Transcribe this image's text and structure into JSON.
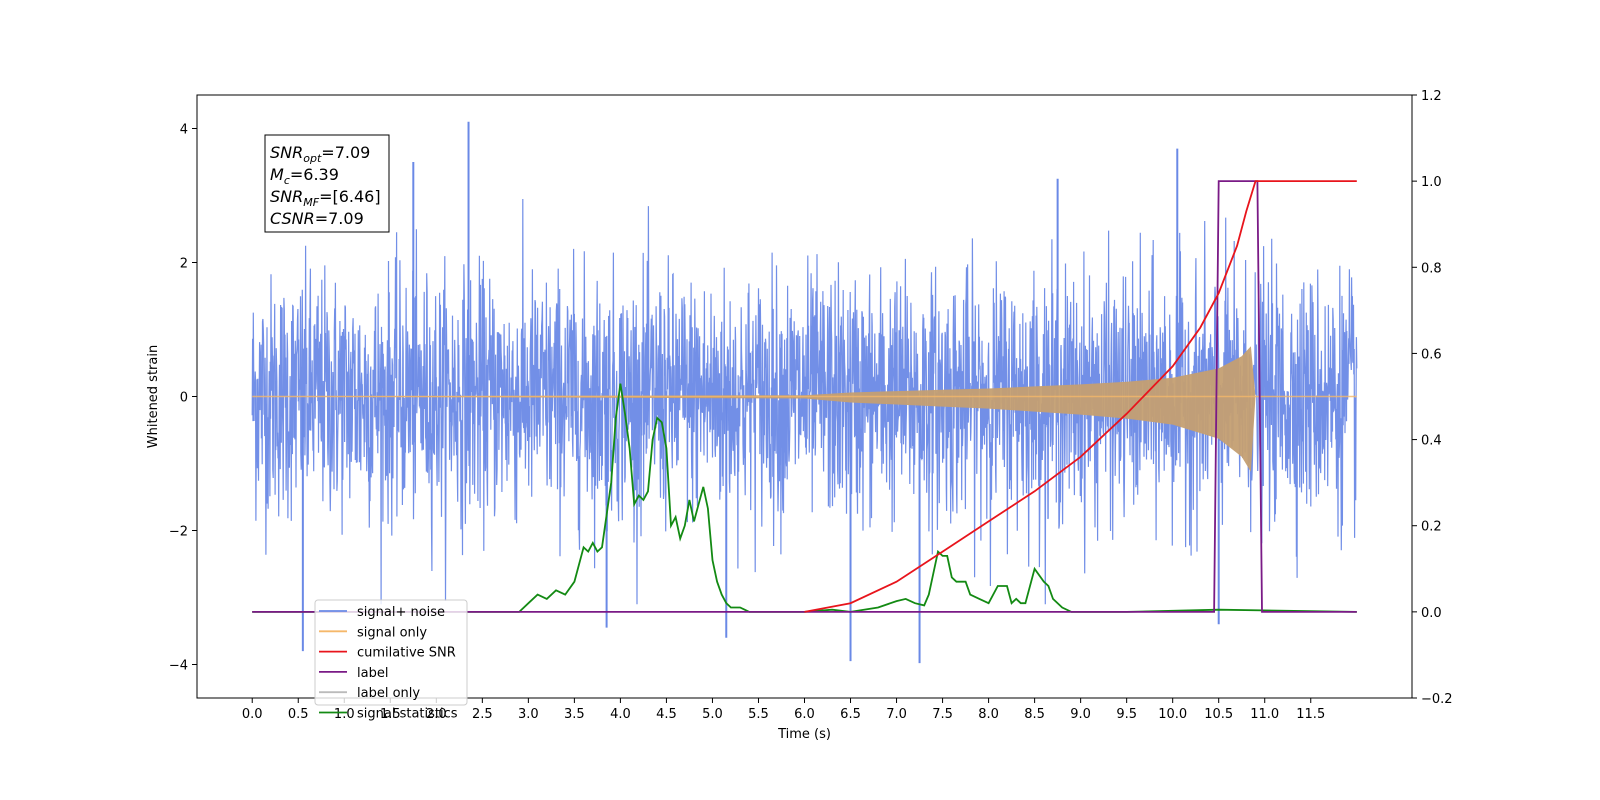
{
  "chart_data": {
    "type": "line",
    "title": "",
    "xlabel": "Time (s)",
    "ylabel": "Whitened strain",
    "y2label": "",
    "xlim": [
      -0.6,
      12.6
    ],
    "ylim": [
      -4.5,
      4.5
    ],
    "y2lim": [
      -0.2,
      1.2
    ],
    "x_ticks": [
      0.0,
      0.5,
      1.0,
      1.5,
      2.0,
      2.5,
      3.0,
      3.5,
      4.0,
      4.5,
      5.0,
      5.5,
      6.0,
      6.5,
      7.0,
      7.5,
      8.0,
      8.5,
      9.0,
      9.5,
      10.0,
      10.5,
      11.0,
      11.5
    ],
    "x_tick_labels": [
      "0.0",
      "0.5",
      "1.0",
      "1.5",
      "2.0",
      "2.5",
      "3.0",
      "3.5",
      "4.0",
      "4.5",
      "5.0",
      "5.5",
      "6.0",
      "6.5",
      "7.0",
      "7.5",
      "8.0",
      "8.5",
      "9.0",
      "9.5",
      "10.0",
      "10.5",
      "11.0",
      "11.5"
    ],
    "y_ticks": [
      -4,
      -2,
      0,
      2,
      4
    ],
    "y_tick_labels": [
      "−4",
      "−2",
      "0",
      "2",
      "4"
    ],
    "y2_ticks": [
      -0.2,
      0.0,
      0.2,
      0.4,
      0.6,
      0.8,
      1.0,
      1.2
    ],
    "y2_tick_labels": [
      "−0.2",
      "0.0",
      "0.2",
      "0.4",
      "0.6",
      "0.8",
      "1.0",
      "1.2"
    ],
    "grid": false,
    "legend_position": "lower-left",
    "series": [
      {
        "name": "signal+ noise",
        "axis": "left",
        "color": "#6a89e6",
        "noise_std": 0.9,
        "x_range": [
          0.0,
          12.0
        ],
        "spikes": [
          [
            0.55,
            -3.8
          ],
          [
            1.75,
            3.5
          ],
          [
            2.35,
            4.1
          ],
          [
            3.85,
            -3.45
          ],
          [
            5.15,
            -3.6
          ],
          [
            6.5,
            -3.95
          ],
          [
            7.25,
            -3.98
          ],
          [
            8.75,
            3.25
          ],
          [
            10.05,
            3.7
          ],
          [
            10.5,
            -3.4
          ]
        ]
      },
      {
        "name": "signal only",
        "axis": "left",
        "color": "#f5b86a",
        "envelope": [
          [
            0.0,
            0.0
          ],
          [
            6.0,
            0.02
          ],
          [
            6.5,
            0.06
          ],
          [
            7.0,
            0.08
          ],
          [
            7.5,
            0.1
          ],
          [
            8.0,
            0.12
          ],
          [
            8.5,
            0.15
          ],
          [
            9.0,
            0.18
          ],
          [
            9.5,
            0.22
          ],
          [
            10.0,
            0.28
          ],
          [
            10.5,
            0.42
          ],
          [
            10.75,
            0.6
          ],
          [
            10.85,
            0.75
          ],
          [
            10.9,
            0.0
          ],
          [
            12.0,
            0.0
          ]
        ]
      },
      {
        "name": "cumilative SNR",
        "axis": "right",
        "color": "#e8141c",
        "x": [
          6.0,
          6.5,
          7.0,
          7.5,
          8.0,
          8.5,
          9.0,
          9.5,
          10.0,
          10.3,
          10.5,
          10.7,
          10.8,
          10.9,
          12.0
        ],
        "values": [
          0.0,
          0.02,
          0.07,
          0.14,
          0.21,
          0.28,
          0.36,
          0.46,
          0.57,
          0.66,
          0.74,
          0.85,
          0.93,
          1.0,
          1.0
        ]
      },
      {
        "name": "label",
        "axis": "right",
        "color": "#7a1a86",
        "x": [
          0.0,
          10.45,
          10.5,
          10.92,
          10.97,
          12.0
        ],
        "values": [
          0.0,
          0.0,
          1.0,
          1.0,
          0.0,
          0.0
        ]
      },
      {
        "name": "label only",
        "axis": "right",
        "color": "#bbbbbb",
        "x": [],
        "values": []
      },
      {
        "name": "signal statistics",
        "axis": "right",
        "color": "#138a13",
        "x": [
          0.0,
          2.9,
          3.0,
          3.1,
          3.2,
          3.3,
          3.4,
          3.5,
          3.6,
          3.65,
          3.7,
          3.75,
          3.8,
          3.9,
          3.95,
          4.0,
          4.05,
          4.1,
          4.15,
          4.2,
          4.25,
          4.3,
          4.35,
          4.4,
          4.45,
          4.5,
          4.55,
          4.6,
          4.65,
          4.7,
          4.75,
          4.8,
          4.85,
          4.9,
          4.95,
          5.0,
          5.05,
          5.1,
          5.15,
          5.2,
          5.25,
          5.3,
          5.35,
          5.4,
          5.45,
          5.5,
          5.6,
          5.7,
          5.8,
          6.0,
          6.3,
          6.5,
          6.8,
          7.0,
          7.1,
          7.2,
          7.3,
          7.35,
          7.45,
          7.5,
          7.55,
          7.6,
          7.65,
          7.7,
          7.75,
          7.8,
          7.9,
          8.0,
          8.1,
          8.2,
          8.25,
          8.3,
          8.35,
          8.4,
          8.5,
          8.6,
          8.65,
          8.7,
          8.8,
          8.9,
          9.0,
          9.2,
          9.5,
          10.5,
          12.0
        ],
        "values": [
          0.0,
          0.0,
          0.02,
          0.04,
          0.03,
          0.05,
          0.04,
          0.07,
          0.15,
          0.14,
          0.16,
          0.14,
          0.15,
          0.3,
          0.45,
          0.53,
          0.46,
          0.38,
          0.25,
          0.27,
          0.26,
          0.28,
          0.4,
          0.45,
          0.44,
          0.38,
          0.2,
          0.22,
          0.17,
          0.2,
          0.26,
          0.21,
          0.25,
          0.29,
          0.24,
          0.12,
          0.07,
          0.04,
          0.02,
          0.01,
          0.01,
          0.01,
          0.005,
          0.0,
          0.0,
          0.0,
          0.0,
          0.0,
          0.0,
          0.0,
          0.005,
          0.0,
          0.01,
          0.025,
          0.03,
          0.02,
          0.015,
          0.04,
          0.14,
          0.13,
          0.13,
          0.08,
          0.07,
          0.07,
          0.07,
          0.04,
          0.03,
          0.02,
          0.06,
          0.06,
          0.02,
          0.03,
          0.02,
          0.02,
          0.1,
          0.07,
          0.06,
          0.03,
          0.01,
          0.0,
          0.0,
          0.0,
          0.0,
          0.005,
          0.0
        ]
      }
    ],
    "annotation": {
      "lines": [
        {
          "var": "SNR",
          "sub": "opt",
          "rest": "=7.09"
        },
        {
          "var": "M",
          "sub": "c",
          "rest": "=6.39"
        },
        {
          "var": "SNR",
          "sub": "MF",
          "rest": "=[6.46]"
        },
        {
          "var": "CSNR",
          "sub": "",
          "rest": "=7.09"
        }
      ]
    }
  }
}
